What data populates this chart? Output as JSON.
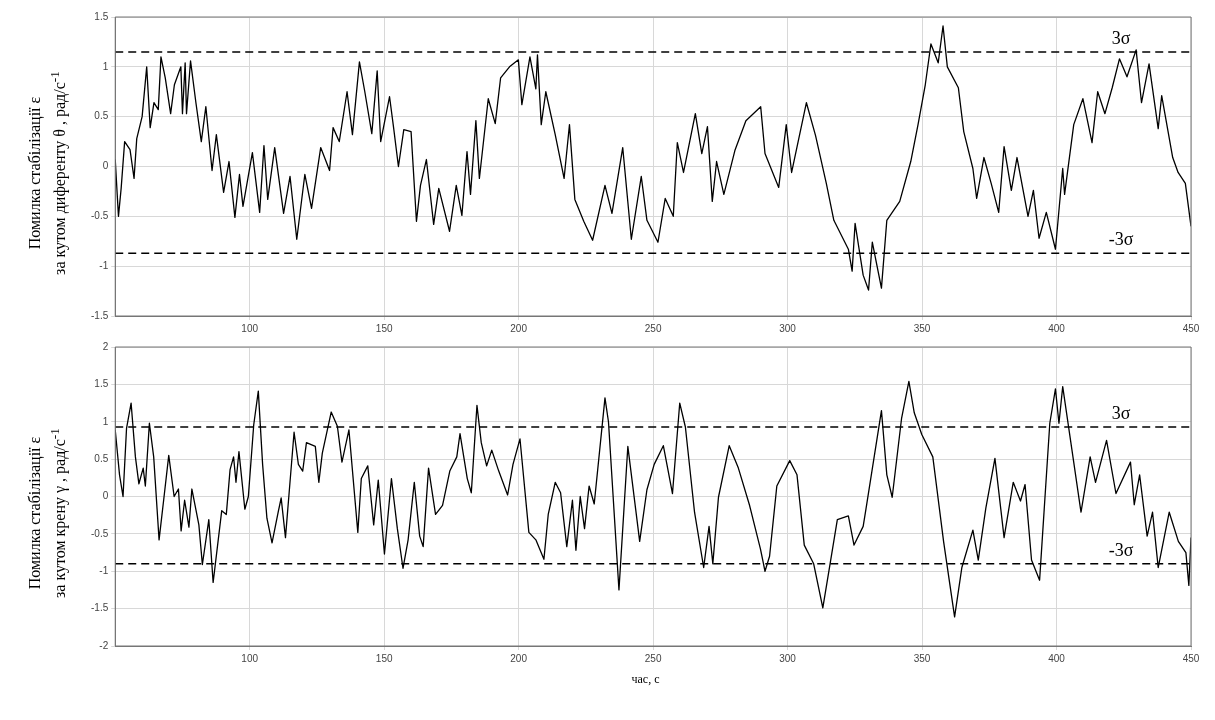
{
  "chart_data": [
    {
      "type": "line",
      "ylabel": "Помилка стабілізації ε\nза кутом диференту θ , рад/с$^{-1}$",
      "xlim": [
        50,
        450
      ],
      "xticks": [
        100,
        150,
        200,
        250,
        300,
        350,
        400,
        450
      ],
      "ylim": [
        -1.5,
        1.5
      ],
      "yticks": [
        -1.5,
        -1,
        -0.5,
        0,
        0.5,
        1,
        1.5
      ],
      "grid": true,
      "marker": "none",
      "line_style": "solid",
      "ref_lines": [
        {
          "axis": "y",
          "value": 1.15,
          "label": "3σ",
          "color": "#000000",
          "line_style": "dashed"
        },
        {
          "axis": "y",
          "value": -0.87,
          "label": "-3σ",
          "color": "#000000",
          "line_style": "dashed"
        }
      ],
      "series": [
        {
          "color": "#000000",
          "x": [
            50,
            51.2,
            52.2,
            53.5,
            55.5,
            57,
            58,
            60,
            61.7,
            63,
            64.4,
            66,
            67,
            68.6,
            70.6,
            72,
            74.4,
            75,
            76,
            76.5,
            78,
            80,
            82,
            83.7,
            86,
            87.6,
            90.3,
            92.3,
            94.5,
            96.2,
            97.5,
            101,
            103.7,
            105.3,
            106.7,
            109.3,
            112.6,
            115,
            117.5,
            120.5,
            123,
            126.4,
            129.7,
            131,
            133.3,
            136.2,
            138.2,
            140.8,
            142.8,
            145.4,
            147.4,
            148.7,
            152,
            153.5,
            155.3,
            157.3,
            160,
            162,
            163.5,
            165.7,
            168.4,
            170.3,
            174.3,
            176.8,
            178.9,
            180.8,
            182.1,
            184.1,
            185.4,
            188.7,
            191.3,
            193.3,
            196.6,
            199.9,
            201.2,
            204.2,
            206.4,
            207,
            208.4,
            210.1,
            213.6,
            216.9,
            218.9,
            220.9,
            224.2,
            227.5,
            232.1,
            234.7,
            238.7,
            241.9,
            245.6,
            247.7,
            251.8,
            254.5,
            257.5,
            259,
            261.3,
            265.7,
            268.1,
            270.2,
            272,
            273.6,
            276.3,
            280.4,
            284.5,
            290,
            291.6,
            296.7,
            299.5,
            301.5,
            307,
            310.4,
            314.4,
            317.2,
            322.6,
            324,
            325.1,
            328.1,
            330.1,
            331.5,
            334.9,
            336.9,
            341.7,
            345.8,
            348.5,
            351.2,
            353.3,
            356,
            357.8,
            359.4,
            363.5,
            365.5,
            368.9,
            370.3,
            373,
            375.7,
            378.5,
            380.5,
            383.2,
            385.3,
            389.4,
            391.4,
            393.5,
            396.2,
            399.6,
            402.3,
            403,
            406.4,
            409.8,
            413.2,
            415.3,
            418,
            420.7,
            423.4,
            426.2,
            429.6,
            431.6,
            434.4,
            437.8,
            439.1,
            443.2,
            445.2,
            447.9,
            450
          ],
          "values": [
            0.07,
            -0.5,
            -0.22,
            0.25,
            0.17,
            -0.12,
            0.28,
            0.5,
            1.0,
            0.39,
            0.64,
            0.57,
            1.1,
            0.89,
            0.53,
            0.82,
            1.0,
            0.53,
            1.04,
            0.53,
            1.06,
            0.64,
            0.25,
            0.6,
            -0.04,
            0.32,
            -0.26,
            0.05,
            -0.51,
            -0.08,
            -0.4,
            0.14,
            -0.46,
            0.21,
            -0.33,
            0.19,
            -0.47,
            -0.1,
            -0.73,
            -0.08,
            -0.42,
            0.19,
            -0.04,
            0.39,
            0.25,
            0.75,
            0.32,
            1.05,
            0.75,
            0.33,
            0.96,
            0.25,
            0.7,
            0.39,
            0,
            0.37,
            0.35,
            -0.55,
            -0.19,
            0.07,
            -0.58,
            -0.22,
            -0.65,
            -0.19,
            -0.49,
            0.15,
            -0.28,
            0.46,
            -0.12,
            0.68,
            0.43,
            0.89,
            1.0,
            1.07,
            0.62,
            1.1,
            0.78,
            1.12,
            0.42,
            0.75,
            0.32,
            -0.12,
            0.42,
            -0.33,
            -0.55,
            -0.74,
            -0.19,
            -0.47,
            0.19,
            -0.73,
            -0.1,
            -0.54,
            -0.76,
            -0.32,
            -0.5,
            0.24,
            -0.06,
            0.53,
            0.13,
            0.4,
            -0.35,
            0.05,
            -0.28,
            0.16,
            0.46,
            0.6,
            0.13,
            -0.21,
            0.42,
            -0.06,
            0.64,
            0.31,
            -0.17,
            -0.54,
            -0.83,
            -1.05,
            -0.57,
            -1.09,
            -1.24,
            -0.76,
            -1.22,
            -0.54,
            -0.35,
            0.05,
            0.42,
            0.82,
            1.23,
            1.04,
            1.41,
            1.0,
            0.79,
            0.35,
            -0.02,
            -0.32,
            0.09,
            -0.17,
            -0.46,
            0.2,
            -0.24,
            0.09,
            -0.5,
            -0.24,
            -0.72,
            -0.46,
            -0.83,
            -0.02,
            -0.28,
            0.42,
            0.68,
            0.24,
            0.75,
            0.53,
            0.79,
            1.08,
            0.9,
            1.17,
            0.64,
            1.03,
            0.38,
            0.71,
            0.09,
            -0.06,
            -0.17,
            -0.6
          ]
        }
      ]
    },
    {
      "type": "line",
      "ylabel": "Помилка стабілізації ε\nза кутом крену γ , рад/с$^{-1}$",
      "xlabel": "час, с",
      "xlim": [
        50,
        450
      ],
      "xticks": [
        100,
        150,
        200,
        250,
        300,
        350,
        400,
        450
      ],
      "ylim": [
        -2,
        2
      ],
      "yticks": [
        -2,
        -1.5,
        -1,
        -0.5,
        0,
        0.5,
        1,
        1.5,
        2
      ],
      "grid": true,
      "marker": "none",
      "line_style": "solid",
      "ref_lines": [
        {
          "axis": "y",
          "value": 0.93,
          "label": "3σ",
          "color": "#000000",
          "line_style": "dashed"
        },
        {
          "axis": "y",
          "value": -0.9,
          "label": "-3σ",
          "color": "#000000",
          "line_style": "dashed"
        }
      ],
      "series": [
        {
          "color": "#000000",
          "x": [
            50,
            51.6,
            52.9,
            54.2,
            55.9,
            57.5,
            58.8,
            60.4,
            61.2,
            62.7,
            64.3,
            66.3,
            68,
            69.9,
            71.9,
            73.5,
            74.5,
            75.8,
            77.4,
            78.5,
            81.1,
            82.4,
            84.8,
            86.4,
            88.3,
            89.6,
            91.3,
            92.7,
            94,
            94.9,
            96,
            98.2,
            99.5,
            101.5,
            103.2,
            104.8,
            106.4,
            108.3,
            110.7,
            111.7,
            113.3,
            116.5,
            118.1,
            119.7,
            121.1,
            124.4,
            125.7,
            127,
            130.3,
            132.6,
            134.3,
            136.9,
            140.2,
            141.5,
            143.9,
            146.1,
            147.8,
            150.1,
            152.7,
            154.9,
            157,
            158.9,
            161.2,
            163.2,
            164.5,
            166.5,
            169.1,
            171.7,
            174.4,
            177,
            178.2,
            180.9,
            182.4,
            184.5,
            186.1,
            188.1,
            190,
            192.6,
            195.9,
            197.9,
            200.5,
            203.8,
            206.4,
            209.4,
            211,
            213.6,
            215.6,
            217.9,
            220,
            221.3,
            222.9,
            224.5,
            226.2,
            228.1,
            232.1,
            233.4,
            237.3,
            240.6,
            245,
            247.7,
            250.4,
            253.8,
            257.2,
            259.9,
            262,
            265.4,
            268.8,
            270.8,
            272.2,
            274.3,
            278.3,
            281.7,
            285.8,
            289.9,
            291.6,
            293.3,
            296,
            300.8,
            303.5,
            306.2,
            309.7,
            313.1,
            315.8,
            318.5,
            322.6,
            324.7,
            328.1,
            329.4,
            334.9,
            336.9,
            338.9,
            342.4,
            345.1,
            347.1,
            349.9,
            354,
            358,
            362.1,
            364.8,
            368.9,
            370.9,
            373.7,
            377.1,
            380.5,
            383.9,
            386.6,
            388.3,
            390.7,
            393.7,
            397.5,
            399.6,
            400.9,
            402.3,
            405.7,
            409.1,
            412.5,
            414.5,
            418.6,
            422.1,
            427.5,
            428.9,
            430.9,
            433.7,
            435.7,
            437.8,
            441.9,
            445.3,
            448.1,
            449.2,
            450
          ],
          "values": [
            0.89,
            0.29,
            0,
            0.91,
            1.25,
            0.53,
            0.17,
            0.38,
            0.14,
            0.98,
            0.53,
            -0.58,
            -0.05,
            0.55,
            0,
            0.1,
            -0.46,
            -0.05,
            -0.41,
            0.1,
            -0.38,
            -0.91,
            -0.31,
            -1.15,
            -0.58,
            -0.19,
            -0.24,
            0.36,
            0.53,
            0.19,
            0.6,
            -0.17,
            0,
            0.96,
            1.41,
            0.43,
            -0.29,
            -0.62,
            -0.19,
            -0.02,
            -0.55,
            0.86,
            0.43,
            0.34,
            0.72,
            0.67,
            0.19,
            0.58,
            1.13,
            0.94,
            0.46,
            0.89,
            -0.48,
            0.24,
            0.41,
            -0.38,
            0.22,
            -0.77,
            0.24,
            -0.43,
            -0.96,
            -0.58,
            0.19,
            -0.53,
            -0.67,
            0.38,
            -0.24,
            -0.12,
            0.34,
            0.53,
            0.84,
            0.24,
            0.05,
            1.22,
            0.72,
            0.41,
            0.62,
            0.34,
            0.02,
            0.43,
            0.77,
            -0.48,
            -0.58,
            -0.84,
            -0.24,
            0.19,
            0.05,
            -0.67,
            -0.05,
            -0.72,
            0,
            -0.43,
            0.14,
            -0.1,
            1.32,
            1.0,
            -1.25,
            0.67,
            -0.6,
            0.09,
            0.43,
            0.68,
            0.04,
            1.25,
            0.93,
            -0.21,
            -0.95,
            -0.4,
            -0.9,
            -0.01,
            0.68,
            0.38,
            -0.11,
            -0.7,
            -1.0,
            -0.8,
            0.14,
            0.48,
            0.29,
            -0.65,
            -0.9,
            -1.49,
            -0.9,
            -0.31,
            -0.26,
            -0.65,
            -0.4,
            -0.11,
            1.15,
            0.29,
            -0.01,
            1.05,
            1.54,
            1.12,
            0.83,
            0.53,
            -0.6,
            -1.61,
            -0.95,
            -0.45,
            -0.85,
            -0.16,
            0.51,
            -0.55,
            0.19,
            -0.06,
            0.16,
            -0.85,
            -1.12,
            0.98,
            1.44,
            0.98,
            1.47,
            0.63,
            -0.21,
            0.53,
            0.19,
            0.75,
            0.04,
            0.46,
            -0.11,
            0.29,
            -0.53,
            -0.21,
            -0.95,
            -0.21,
            -0.6,
            -0.75,
            -1.19,
            -0.55
          ]
        }
      ]
    }
  ]
}
